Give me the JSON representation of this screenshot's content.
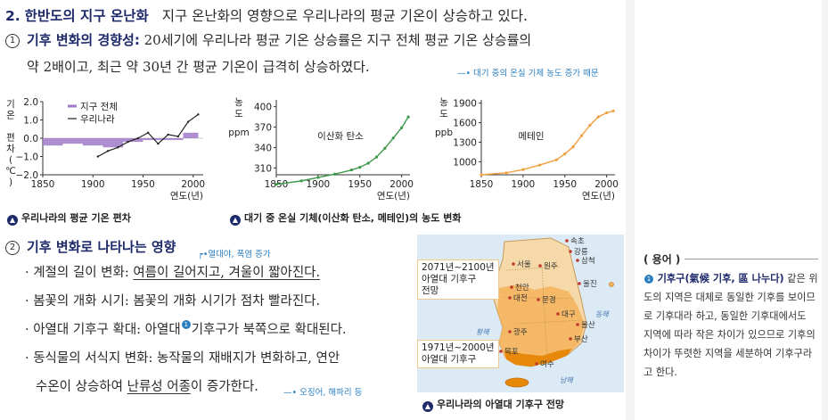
{
  "section": {
    "number": "2.",
    "title": "한반도의 지구 온난화",
    "intro": "지구 온난화의 영향으로 우리나라의 평균 기온이 상승하고 있다."
  },
  "point1": {
    "marker": "1",
    "title": "기후 변화의 경향성:",
    "text_line1": "20세기에 우리나라 평균 기온 상승률은 지구 전체 평균 기온 상승률의",
    "text_line2": "약 2배이고, 최근 약 30년 간 평균 기온이 급격히 상승하였다.",
    "side_note": "대기 중의 온실 기체 농도 증가 때문"
  },
  "chart_data": [
    {
      "type": "line",
      "ylabel": "기온 편차(℃)",
      "xlabel": "연도(년)",
      "xlim": [
        1850,
        2010
      ],
      "ylim": [
        -2.0,
        2.0
      ],
      "xticks": [
        "1850",
        "1900",
        "1950",
        "2000"
      ],
      "yticks": [
        "2.0",
        "1.0",
        "0.0",
        "−1.0",
        "−2.0"
      ],
      "legend": [
        "지구 전체",
        "우리나라"
      ],
      "series": [
        {
          "name": "지구 전체",
          "x": [
            1850,
            1870,
            1890,
            1910,
            1930,
            1950,
            1970,
            1990,
            2005
          ],
          "values": [
            -0.4,
            -0.3,
            -0.4,
            -0.5,
            -0.2,
            -0.1,
            -0.1,
            0.3,
            0.5
          ]
        },
        {
          "name": "우리나라",
          "x": [
            1905,
            1915,
            1925,
            1935,
            1945,
            1955,
            1965,
            1975,
            1985,
            1995,
            2005
          ],
          "values": [
            -1.0,
            -0.7,
            -0.5,
            -0.2,
            0.0,
            0.3,
            -0.3,
            0.2,
            0.1,
            0.9,
            1.3
          ]
        }
      ]
    },
    {
      "type": "scatter",
      "ylabel": "농도(ppm)",
      "xlabel": "연도(년)",
      "annotation": "이산화 탄소",
      "xlim": [
        1850,
        2010
      ],
      "ylim": [
        300,
        410
      ],
      "xticks": [
        "1850",
        "1900",
        "1950",
        "2000"
      ],
      "yticks": [
        "400",
        "370",
        "340",
        "310"
      ],
      "series": [
        {
          "name": "이산화 탄소",
          "x": [
            1850,
            1880,
            1900,
            1920,
            1940,
            1950,
            1960,
            1970,
            1980,
            1990,
            2000,
            2008
          ],
          "values": [
            286,
            291,
            296,
            301,
            307,
            311,
            317,
            326,
            339,
            354,
            369,
            385
          ]
        }
      ]
    },
    {
      "type": "scatter",
      "ylabel": "농도(ppb)",
      "xlabel": "연도(년)",
      "annotation": "메테인",
      "xlim": [
        1850,
        2010
      ],
      "ylim": [
        800,
        1950
      ],
      "xticks": [
        "1850",
        "1900",
        "1950",
        "2000"
      ],
      "yticks": [
        "1900",
        "1600",
        "1300",
        "1000"
      ],
      "series": [
        {
          "name": "메테인",
          "x": [
            1850,
            1880,
            1900,
            1920,
            1940,
            1950,
            1960,
            1970,
            1980,
            1990,
            2000,
            2008
          ],
          "values": [
            800,
            830,
            880,
            950,
            1030,
            1120,
            1230,
            1400,
            1560,
            1690,
            1750,
            1780
          ]
        }
      ]
    }
  ],
  "captions": {
    "chart1": "우리나라의 평균 기온 편차",
    "chart23": "대기 중 온실 기체(이산화 탄소, 메테인)의 농도 변화",
    "map": "우리나라의 아열대 기후구 전망"
  },
  "point2": {
    "marker": "2",
    "title": "기후 변화로 나타나는 영향",
    "side_note": "열대야, 폭염 증가",
    "bullets": [
      {
        "label": "계절의 길이 변화:",
        "text": "여름이 길어지고, 겨울이 짧아진다."
      },
      {
        "label": "봄꽃의 개화 시기:",
        "text": "봄꽃의 개화 시기가 점차 빨라진다."
      },
      {
        "label": "아열대 기후구 확대:",
        "text_a": "아열대",
        "text_b": "기후구가 북쪽으로 확대된다."
      },
      {
        "label": "동식물의 서식지 변화:",
        "text_line1": "농작물의 재배지가 변화하고, 연안",
        "text_line2a": "수온이 상승하여",
        "text_line2b": "난류성 어종",
        "text_line2c": "이 증가한다."
      }
    ],
    "fish_note": "오징어, 해파리 등"
  },
  "map": {
    "label_2071": [
      "2071년~2100년",
      "아열대 기후구",
      "전망"
    ],
    "label_1971": [
      "1971년~2000년",
      "아열대 기후구"
    ],
    "cities": [
      "속초",
      "강릉",
      "삼척",
      "서울",
      "원주",
      "울진",
      "천안",
      "대전",
      "문경",
      "대구",
      "울산",
      "부산",
      "목포",
      "여수",
      "광주"
    ],
    "sea_labels": [
      "동해",
      "황해",
      "남해"
    ],
    "colors": {
      "land": "#f5d9a8",
      "future": "#f4b25a",
      "past": "#e8880a",
      "sea": "#dbeaf5"
    }
  },
  "glossary": {
    "header": "( 용어 )",
    "marker": "1",
    "term": "기후구(氣候 기후, 區 나누다)",
    "definition": "같은 위도의 지역은 대체로 동일한 기후를 보이므로 기후대라 하고, 동일한 기후대에서도 지역에 따라 작은 차이가 있으므로 기후의 차이가 뚜렷한 지역을 세분하여 기후구라고 한다."
  }
}
